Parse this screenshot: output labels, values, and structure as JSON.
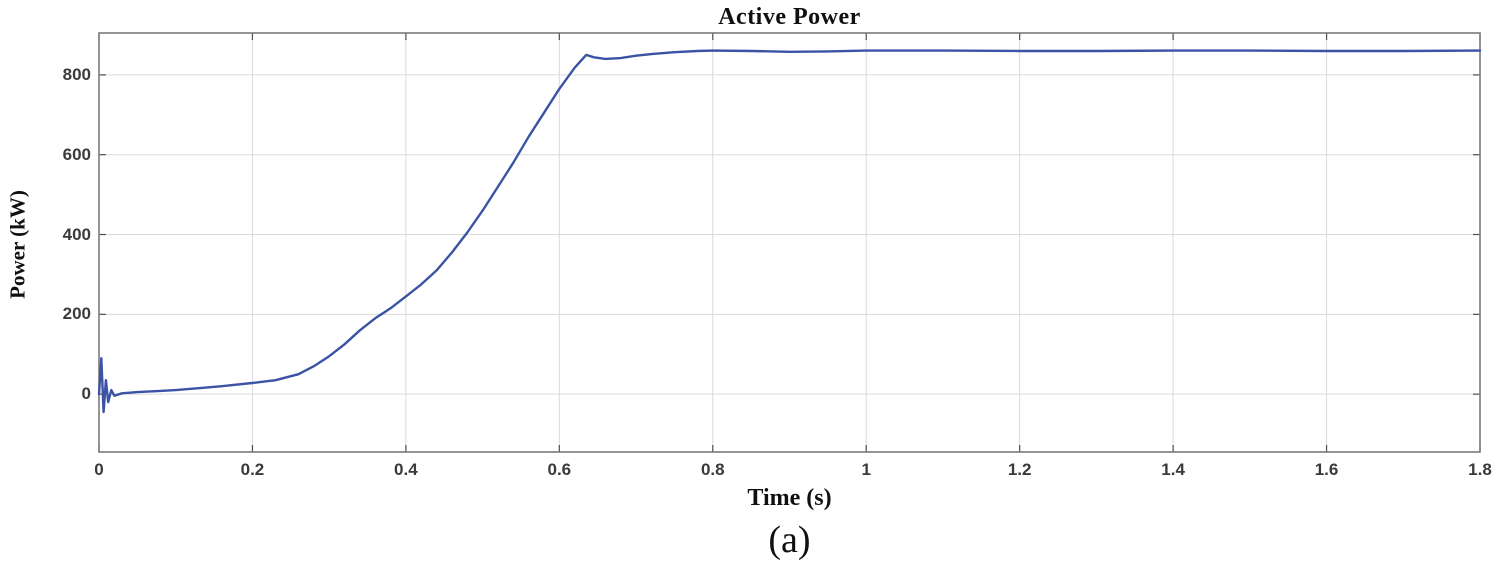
{
  "figure": {
    "caption": "(a)"
  },
  "chart_data": {
    "type": "line",
    "title": "Active Power",
    "xlabel": "Time (s)",
    "ylabel": "Power (kW)",
    "legend": "none",
    "grid": true,
    "line_color": "#3a53a4",
    "xlim": [
      0,
      1.8
    ],
    "ylim": [
      -145,
      905
    ],
    "xticks": [
      0,
      0.2,
      0.4,
      0.6,
      0.8,
      1,
      1.2,
      1.4,
      1.6,
      1.8
    ],
    "xtick_labels": [
      "0",
      "0.2",
      "0.4",
      "0.6",
      "0.8",
      "1",
      "1.2",
      "1.4",
      "1.6",
      "1.8"
    ],
    "yticks": [
      0,
      200,
      400,
      600,
      800
    ],
    "ytick_labels": [
      "0",
      "200",
      "400",
      "600",
      "800"
    ],
    "series": [
      {
        "name": "Active Power",
        "points": [
          [
            0,
            0
          ],
          [
            0.003,
            90
          ],
          [
            0.006,
            -45
          ],
          [
            0.009,
            35
          ],
          [
            0.012,
            -20
          ],
          [
            0.016,
            10
          ],
          [
            0.02,
            -4
          ],
          [
            0.03,
            2
          ],
          [
            0.05,
            5
          ],
          [
            0.08,
            8
          ],
          [
            0.1,
            10
          ],
          [
            0.13,
            15
          ],
          [
            0.16,
            20
          ],
          [
            0.18,
            24
          ],
          [
            0.2,
            28
          ],
          [
            0.23,
            35
          ],
          [
            0.26,
            50
          ],
          [
            0.28,
            70
          ],
          [
            0.3,
            95
          ],
          [
            0.32,
            125
          ],
          [
            0.34,
            160
          ],
          [
            0.36,
            190
          ],
          [
            0.38,
            215
          ],
          [
            0.4,
            245
          ],
          [
            0.42,
            275
          ],
          [
            0.44,
            310
          ],
          [
            0.46,
            355
          ],
          [
            0.48,
            405
          ],
          [
            0.5,
            460
          ],
          [
            0.52,
            520
          ],
          [
            0.54,
            580
          ],
          [
            0.56,
            645
          ],
          [
            0.58,
            705
          ],
          [
            0.6,
            765
          ],
          [
            0.62,
            818
          ],
          [
            0.635,
            850
          ],
          [
            0.645,
            844
          ],
          [
            0.66,
            840
          ],
          [
            0.68,
            842
          ],
          [
            0.7,
            848
          ],
          [
            0.72,
            852
          ],
          [
            0.75,
            857
          ],
          [
            0.78,
            860
          ],
          [
            0.8,
            861
          ],
          [
            0.85,
            860
          ],
          [
            0.9,
            858
          ],
          [
            0.95,
            859
          ],
          [
            1.0,
            861
          ],
          [
            1.1,
            861
          ],
          [
            1.2,
            860
          ],
          [
            1.3,
            860
          ],
          [
            1.4,
            861
          ],
          [
            1.5,
            861
          ],
          [
            1.6,
            860
          ],
          [
            1.7,
            860
          ],
          [
            1.8,
            861
          ]
        ]
      }
    ]
  }
}
